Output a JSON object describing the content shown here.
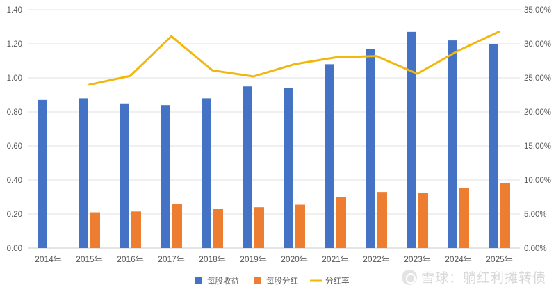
{
  "chart_data": {
    "type": "bar",
    "categories": [
      "2014年",
      "2015年",
      "2016年",
      "2017年",
      "2018年",
      "2019年",
      "2020年",
      "2021年",
      "2022年",
      "2023年",
      "2024年",
      "2025年"
    ],
    "series": [
      {
        "name": "每股收益",
        "kind": "bar",
        "axis": "left",
        "color": "#4472C4",
        "values": [
          0.87,
          0.88,
          0.85,
          0.84,
          0.88,
          0.95,
          0.94,
          1.08,
          1.17,
          1.27,
          1.22,
          1.2
        ]
      },
      {
        "name": "每股分红",
        "kind": "bar",
        "axis": "left",
        "color": "#ED7D31",
        "values": [
          null,
          0.21,
          0.215,
          0.26,
          0.23,
          0.24,
          0.255,
          0.3,
          0.33,
          0.325,
          0.355,
          0.38
        ]
      },
      {
        "name": "分红率",
        "kind": "line",
        "axis": "right",
        "color": "#F2B70C",
        "values": [
          null,
          24.0,
          25.3,
          31.1,
          26.1,
          25.2,
          27.0,
          28.0,
          28.2,
          25.6,
          29.0,
          31.8
        ]
      }
    ],
    "left_axis": {
      "min": 0,
      "max": 1.4,
      "ticks": [
        "0.00",
        "0.20",
        "0.40",
        "0.60",
        "0.80",
        "1.00",
        "1.20",
        "1.40"
      ]
    },
    "right_axis": {
      "min": 0,
      "max": 35,
      "ticks": [
        "0.00%",
        "5.00%",
        "10.00%",
        "15.00%",
        "20.00%",
        "25.00%",
        "30.00%",
        "35.00%"
      ]
    },
    "grid": true,
    "legend_position": "bottom",
    "legend": [
      "每股收益",
      "每股分红",
      "分红率"
    ]
  },
  "watermark": "雪球：躺红利摊转债"
}
